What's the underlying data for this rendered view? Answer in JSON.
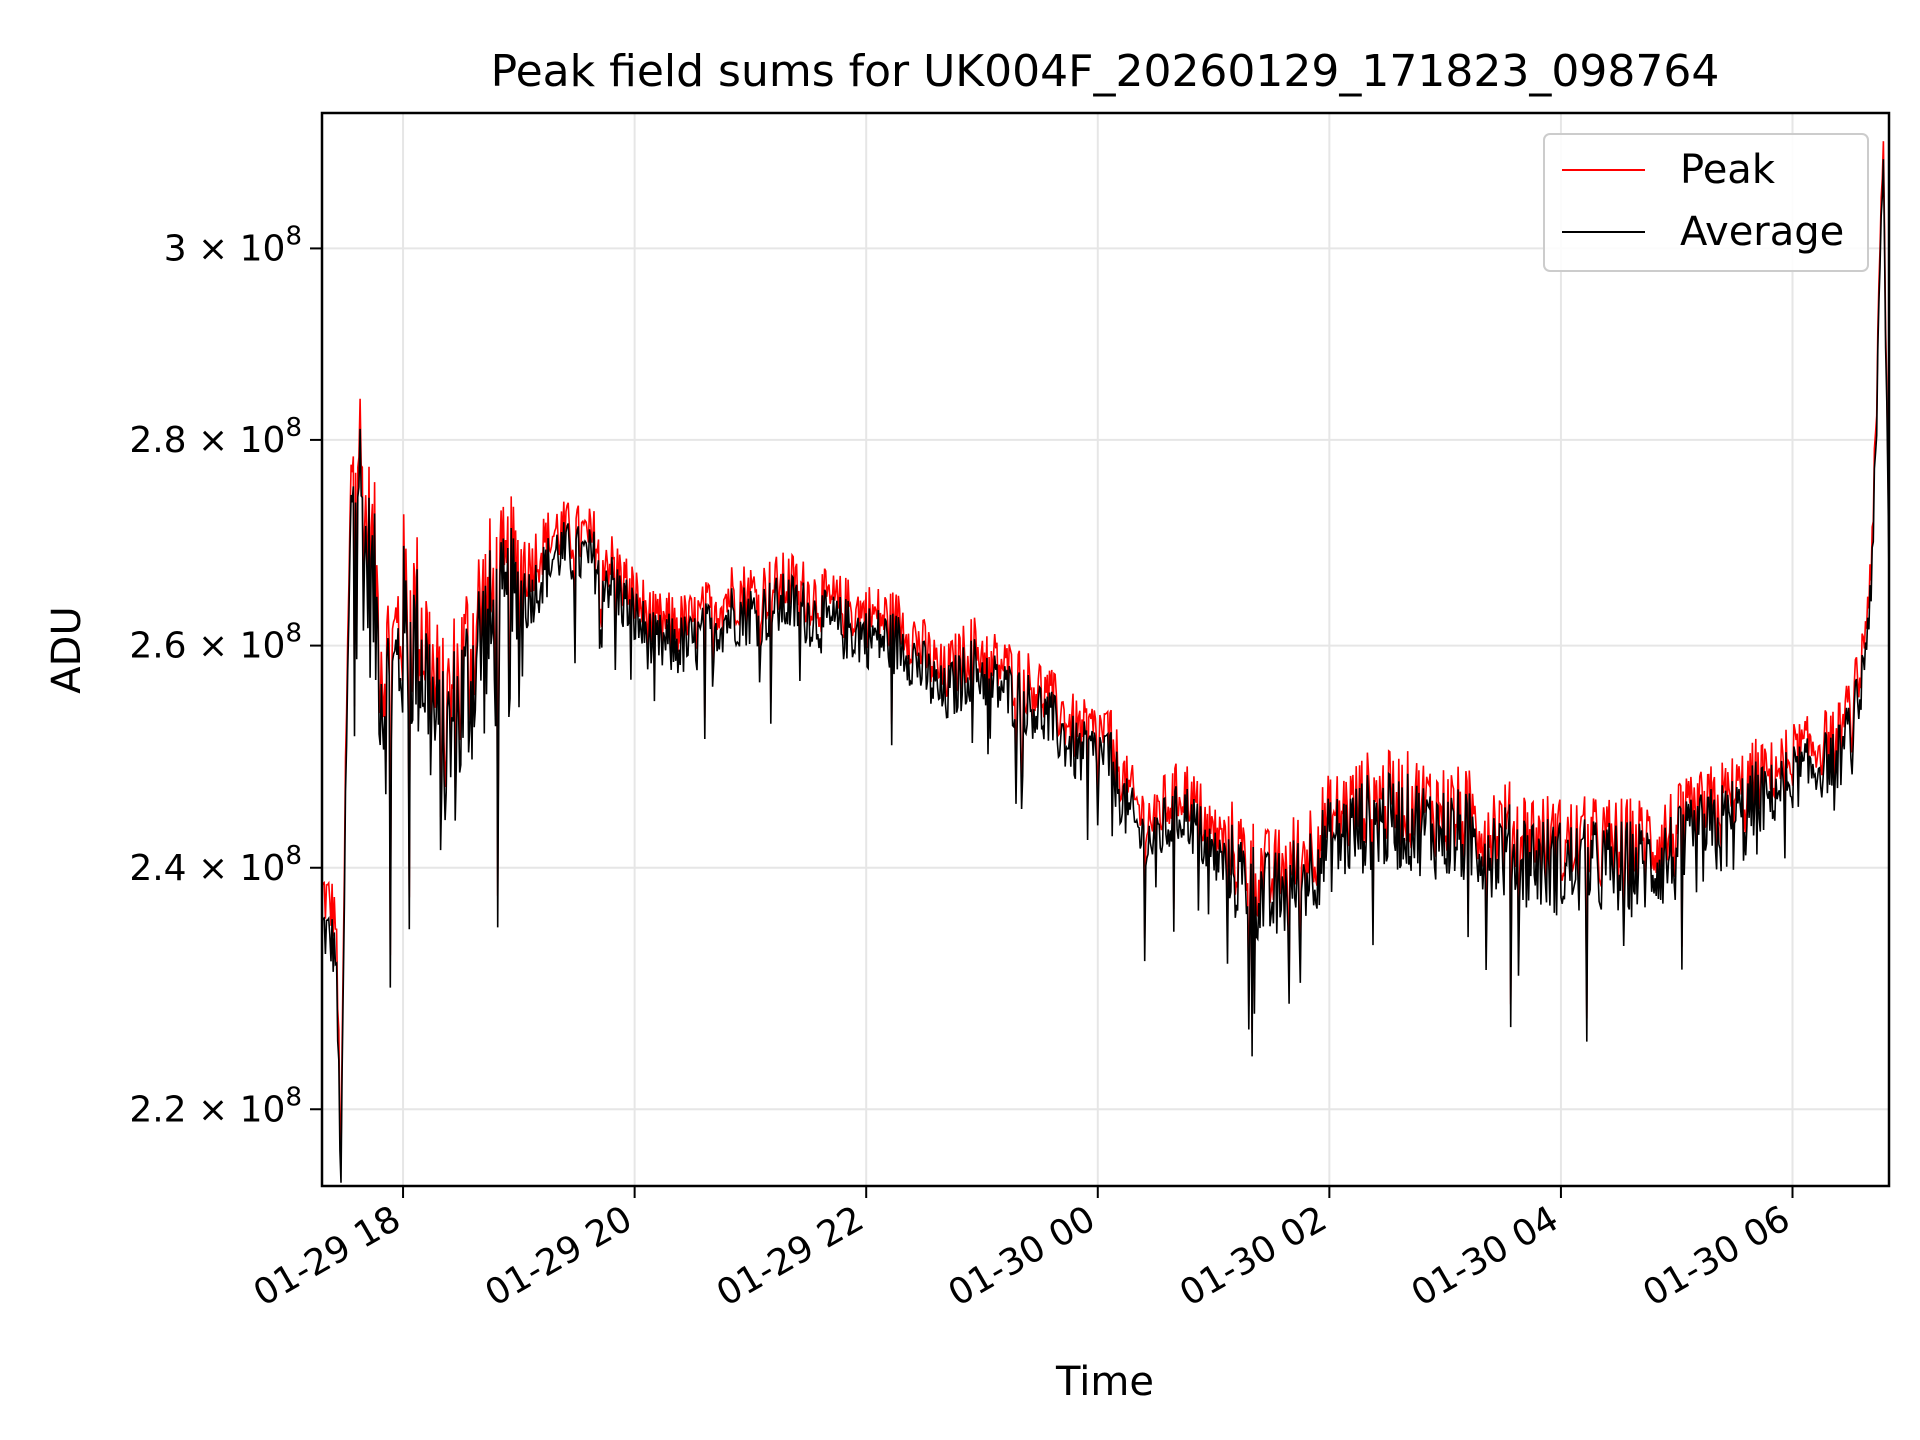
{
  "chart_data": {
    "type": "line",
    "title": "Peak field sums for UK004F_20260129_171823_098764",
    "xlabel": "Time",
    "ylabel": "ADU",
    "y_scale": "log",
    "grid": true,
    "legend_position": "top-right",
    "x_range": [
      "2026-01-29 17:18",
      "2026-01-30 06:50"
    ],
    "y_range": [
      214000000,
      315000000
    ],
    "x_ticks": [
      "01-29 18",
      "01-29 20",
      "01-29 22",
      "01-30 00",
      "01-30 02",
      "01-30 04",
      "01-30 06"
    ],
    "y_ticks": [
      {
        "value": 220000000,
        "mantissa": "2.2",
        "exp": "8"
      },
      {
        "value": 240000000,
        "mantissa": "2.4",
        "exp": "8"
      },
      {
        "value": 260000000,
        "mantissa": "2.6",
        "exp": "8"
      },
      {
        "value": 280000000,
        "mantissa": "2.8",
        "exp": "8"
      },
      {
        "value": 300000000,
        "mantissa": "3",
        "exp": "8"
      }
    ],
    "x": [
      "2026-01-29 17:18",
      "2026-01-29 17:25",
      "2026-01-29 17:28",
      "2026-01-29 17:30",
      "2026-01-29 17:33",
      "2026-01-29 17:36",
      "2026-01-29 17:40",
      "2026-01-29 17:45",
      "2026-01-29 17:50",
      "2026-01-29 17:55",
      "2026-01-29 18:00",
      "2026-01-29 18:10",
      "2026-01-29 18:20",
      "2026-01-29 18:30",
      "2026-01-29 18:40",
      "2026-01-29 18:50",
      "2026-01-29 19:00",
      "2026-01-29 19:10",
      "2026-01-29 19:20",
      "2026-01-29 19:40",
      "2026-01-29 19:55",
      "2026-01-29 20:10",
      "2026-01-29 20:30",
      "2026-01-29 20:50",
      "2026-01-29 21:05",
      "2026-01-29 21:20",
      "2026-01-29 21:40",
      "2026-01-29 22:00",
      "2026-01-29 22:20",
      "2026-01-29 22:40",
      "2026-01-29 22:55",
      "2026-01-29 23:10",
      "2026-01-29 23:30",
      "2026-01-29 23:50",
      "2026-01-30 00:05",
      "2026-01-30 00:15",
      "2026-01-30 00:25",
      "2026-01-30 00:45",
      "2026-01-30 01:00",
      "2026-01-30 01:15",
      "2026-01-30 01:30",
      "2026-01-30 01:45",
      "2026-01-30 02:00",
      "2026-01-30 02:20",
      "2026-01-30 02:40",
      "2026-01-30 03:00",
      "2026-01-30 03:20",
      "2026-01-30 03:40",
      "2026-01-30 04:00",
      "2026-01-30 04:20",
      "2026-01-30 04:40",
      "2026-01-30 05:00",
      "2026-01-30 05:20",
      "2026-01-30 05:40",
      "2026-01-30 06:00",
      "2026-01-30 06:15",
      "2026-01-30 06:25",
      "2026-01-30 06:35",
      "2026-01-30 06:40",
      "2026-01-30 06:43",
      "2026-01-30 06:45",
      "2026-01-30 06:47",
      "2026-01-30 06:50"
    ],
    "series": [
      {
        "name": "Peak",
        "color": "#ff0000",
        "values": [
          238000000,
          236000000,
          216000000,
          246000000,
          276000000,
          283000000,
          272000000,
          267000000,
          258000000,
          259000000,
          264000000,
          262000000,
          252000000,
          257000000,
          263000000,
          264000000,
          266000000,
          269000000,
          271000000,
          270000000,
          266000000,
          262000000,
          262000000,
          265000000,
          265000000,
          266000000,
          264000000,
          263000000,
          262000000,
          257000000,
          260000000,
          258000000,
          256000000,
          252000000,
          252000000,
          247000000,
          244000000,
          247000000,
          243000000,
          241000000,
          239000000,
          241000000,
          244000000,
          246000000,
          246000000,
          245000000,
          244000000,
          243000000,
          242000000,
          242000000,
          242000000,
          243000000,
          245000000,
          247000000,
          250000000,
          251000000,
          252000000,
          257000000,
          266000000,
          278000000,
          296000000,
          312000000,
          268000000
        ]
      },
      {
        "name": "Average",
        "color": "#000000",
        "values": [
          235000000,
          233000000,
          214000000,
          243000000,
          273000000,
          280000000,
          269000000,
          264000000,
          255000000,
          256000000,
          261000000,
          259000000,
          249000000,
          254000000,
          260000000,
          261000000,
          263000000,
          266000000,
          269000000,
          268000000,
          264000000,
          260000000,
          260000000,
          263000000,
          263000000,
          264000000,
          262000000,
          261000000,
          260000000,
          255000000,
          258000000,
          256000000,
          254000000,
          250000000,
          250000000,
          245000000,
          242000000,
          245000000,
          241000000,
          239000000,
          237000000,
          239000000,
          242000000,
          244000000,
          244000000,
          243000000,
          242000000,
          241000000,
          240000000,
          240000000,
          240000000,
          241000000,
          243000000,
          245000000,
          248000000,
          249000000,
          250000000,
          255000000,
          264000000,
          276000000,
          294000000,
          310000000,
          266000000
        ]
      }
    ]
  }
}
